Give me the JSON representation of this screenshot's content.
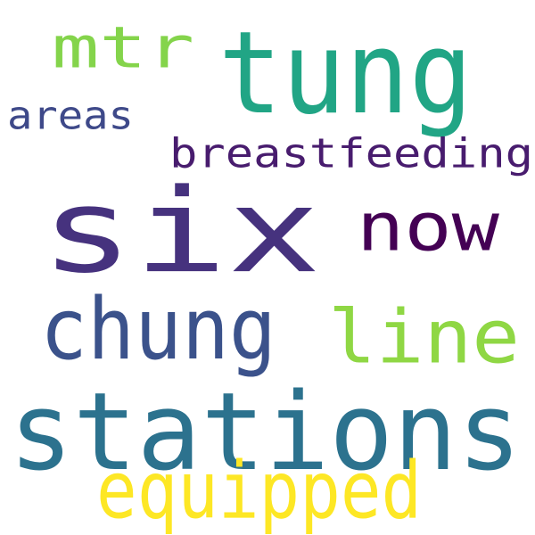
{
  "wordcloud": {
    "words": [
      {
        "text": "six",
        "color": "#46327e"
      },
      {
        "text": "tung",
        "color": "#21a585"
      },
      {
        "text": "stations",
        "color": "#2c728e"
      },
      {
        "text": "chung",
        "color": "#3b528b"
      },
      {
        "text": "now",
        "color": "#440154"
      },
      {
        "text": "line",
        "color": "#8fd744"
      },
      {
        "text": "equipped",
        "color": "#fde725"
      },
      {
        "text": "mtr",
        "color": "#84d44b"
      },
      {
        "text": "breastfeeding",
        "color": "#481c6e"
      },
      {
        "text": "areas",
        "color": "#3e4989"
      }
    ]
  }
}
